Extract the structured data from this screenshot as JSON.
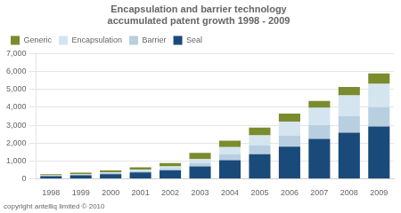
{
  "chart_data": {
    "type": "bar",
    "title": "Encapsulation and barrier technology\naccumulated patent growth 1998 - 2009",
    "annotations": [
      "copyright antelliq limited © 2010"
    ],
    "categories": [
      "1998",
      "1999",
      "2000",
      "2001",
      "2002",
      "2003",
      "2004",
      "2005",
      "2006",
      "2007",
      "2008",
      "2009"
    ],
    "series": [
      {
        "name": "Seal",
        "color": "#1a4a7a",
        "values": [
          150,
          200,
          270,
          360,
          480,
          700,
          1050,
          1380,
          1800,
          2230,
          2580,
          2930
        ]
      },
      {
        "name": "Barrier",
        "color": "#b8cfe0",
        "values": [
          25,
          35,
          55,
          75,
          110,
          190,
          330,
          480,
          620,
          780,
          930,
          1080
        ]
      },
      {
        "name": "Encapsulation",
        "color": "#d4e5f0",
        "values": [
          25,
          35,
          55,
          75,
          110,
          220,
          400,
          580,
          770,
          960,
          1150,
          1300
        ]
      },
      {
        "name": "Generic",
        "color": "#7a8c2e",
        "values": [
          60,
          80,
          100,
          140,
          190,
          340,
          360,
          430,
          460,
          380,
          480,
          580
        ]
      }
    ],
    "stacked": true,
    "ylim": [
      0,
      7000
    ],
    "yticks": [
      0,
      {
        "value": 1000,
        "label": "1,000"
      },
      {
        "value": 2000,
        "label": "2,000"
      },
      {
        "value": 3000,
        "label": "3,000"
      },
      {
        "value": 4000,
        "label": "4,000"
      },
      {
        "value": 5000,
        "label": "5,000"
      },
      {
        "value": 6000,
        "label": "6,000"
      },
      {
        "value": 7000,
        "label": "7,000"
      }
    ],
    "grid": true,
    "legend": "upper left"
  }
}
